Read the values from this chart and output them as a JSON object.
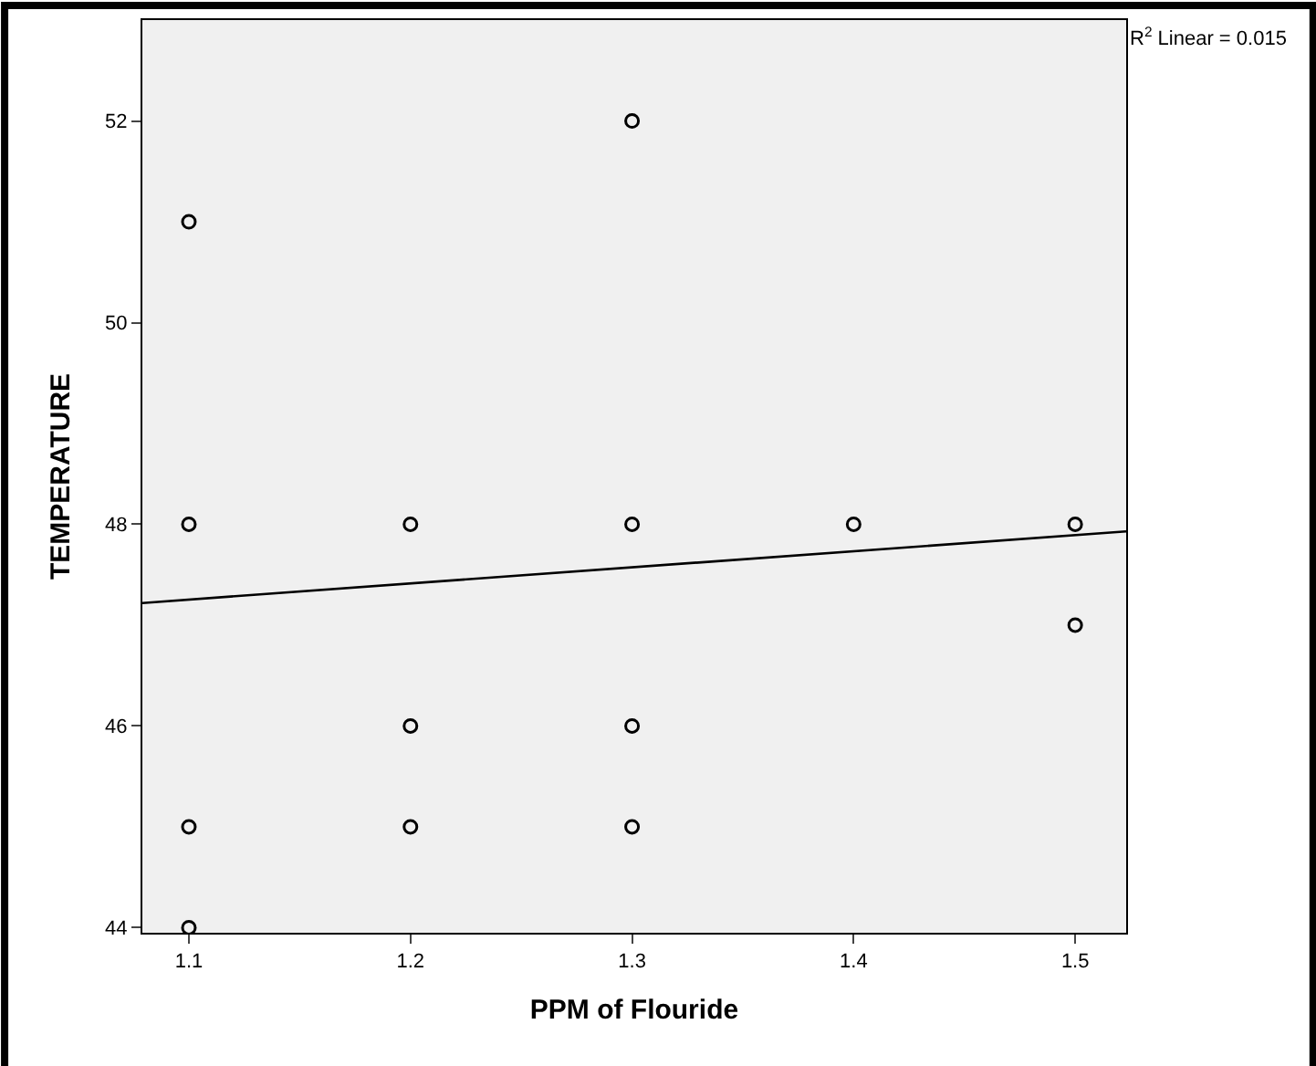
{
  "chart_data": {
    "type": "scatter",
    "xlabel": "PPM of Flouride",
    "ylabel": "TEMPERATURE",
    "annotations": [
      "R$^{2}$ Linear = 0.015"
    ],
    "series": [
      {
        "color": "#000000",
        "marker": "circle",
        "x": [
          1.1,
          1.1,
          1.1,
          1.1,
          1.2,
          1.2,
          1.2,
          1.3,
          1.3,
          1.3,
          1.3,
          1.4,
          1.5,
          1.5
        ],
        "values": [
          51,
          48,
          45,
          44,
          48,
          46,
          45,
          52,
          48,
          46,
          45,
          48,
          48,
          47
        ]
      },
      {
        "type": "line",
        "color": "#000000",
        "marker": "none",
        "x": [
          1.079,
          1.523
        ],
        "values": [
          47.22,
          47.93
        ]
      }
    ],
    "xlim": [
      1.079,
      1.523
    ],
    "ylim": [
      43.95,
      53.0
    ],
    "xticks": [
      1.1,
      1.2,
      1.3,
      1.4,
      1.5
    ],
    "yticks": [
      44,
      46,
      48,
      50,
      52
    ],
    "grid": false
  }
}
